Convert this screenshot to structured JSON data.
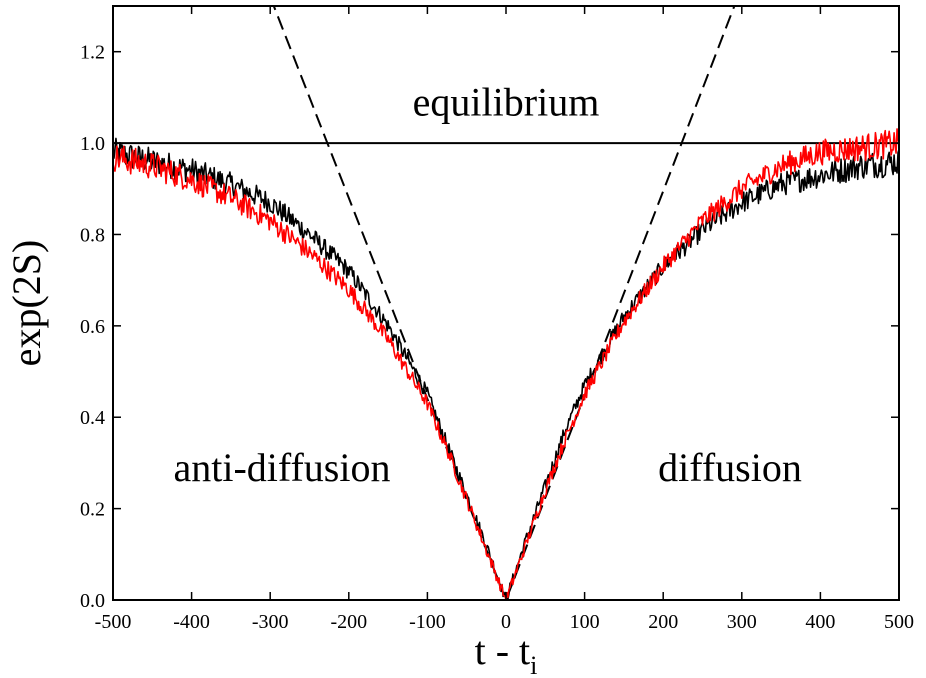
{
  "chart_data": {
    "type": "line",
    "title": "",
    "xlabel": "t - t",
    "xlabel_subscript": "i",
    "ylabel": "exp(2S)",
    "xlim": [
      -500,
      500
    ],
    "ylim": [
      0,
      1.3
    ],
    "xticks": [
      -500,
      -400,
      -300,
      -200,
      -100,
      0,
      100,
      200,
      300,
      400,
      500
    ],
    "xtick_labels": [
      "-500",
      "-400",
      "-300",
      "-200",
      "-100",
      "0",
      "100",
      "200",
      "300",
      "400",
      "500"
    ],
    "yticks": [
      0.0,
      0.2,
      0.4,
      0.6,
      0.8,
      1.0,
      1.2
    ],
    "ytick_labels": [
      "0.0",
      "0.2",
      "0.4",
      "0.6",
      "0.8",
      "1.0",
      "1.2"
    ],
    "grid": false,
    "legend": "none",
    "annotations": [
      {
        "text": "equilibrium",
        "x": 0,
        "y": 1.06
      },
      {
        "text": "anti-diffusion",
        "x": -285,
        "y": 0.26
      },
      {
        "text": "diffusion",
        "x": 285,
        "y": 0.26
      }
    ],
    "series": [
      {
        "color": "#000000",
        "style": "noisy",
        "x": [
          -500,
          -450,
          -400,
          -350,
          -300,
          -250,
          -200,
          -150,
          -100,
          -75,
          -50,
          -25,
          0,
          25,
          50,
          75,
          100,
          150,
          200,
          250,
          300,
          350,
          400,
          450,
          500
        ],
        "y": [
          0.98,
          0.96,
          0.94,
          0.91,
          0.87,
          0.8,
          0.72,
          0.6,
          0.45,
          0.34,
          0.23,
          0.12,
          0.0,
          0.13,
          0.25,
          0.37,
          0.47,
          0.62,
          0.73,
          0.81,
          0.87,
          0.91,
          0.93,
          0.95,
          0.96
        ]
      },
      {
        "color": "#ff0000",
        "style": "noisy",
        "x": [
          -500,
          -450,
          -400,
          -350,
          -300,
          -250,
          -200,
          -150,
          -100,
          -75,
          -50,
          -25,
          0,
          25,
          50,
          75,
          100,
          150,
          200,
          250,
          300,
          350,
          400,
          450,
          500
        ],
        "y": [
          0.97,
          0.95,
          0.92,
          0.88,
          0.83,
          0.76,
          0.68,
          0.57,
          0.43,
          0.33,
          0.22,
          0.11,
          0.0,
          0.12,
          0.24,
          0.35,
          0.45,
          0.61,
          0.73,
          0.83,
          0.9,
          0.95,
          0.98,
          0.99,
          1.0
        ]
      },
      {
        "color": "#000000",
        "style": "solid",
        "x": [
          -500,
          500
        ],
        "y": [
          1.0,
          1.0
        ]
      },
      {
        "color": "#000000",
        "style": "dashed",
        "x": [
          -300,
          0,
          295
        ],
        "y": [
          1.32,
          0.0,
          1.32
        ]
      }
    ]
  }
}
